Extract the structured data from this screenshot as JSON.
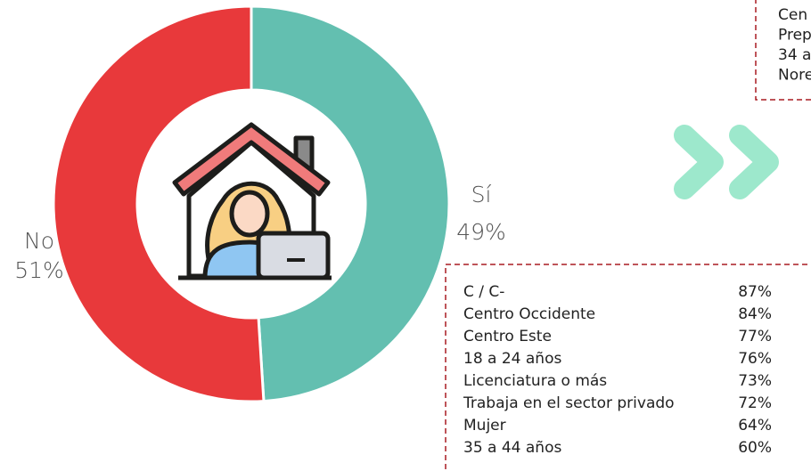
{
  "chart_data": {
    "type": "donut",
    "categories": [
      "Sí",
      "No"
    ],
    "values": [
      49,
      51
    ],
    "value_labels": [
      "49%",
      "51%"
    ],
    "colors": [
      "#63bfb0",
      "#e8393b"
    ]
  },
  "top_box": {
    "lines": [
      "Cen",
      "Prep",
      "34 a",
      "Nore"
    ]
  },
  "bottom_box": {
    "rows": [
      [
        "C / C-",
        "87%"
      ],
      [
        "Centro Occidente",
        "84%"
      ],
      [
        "Centro Este",
        "77%"
      ],
      [
        "18 a 24 años",
        "76%"
      ],
      [
        "Licenciatura o más",
        "73%"
      ],
      [
        "Trabaja en el sector privado",
        "72%"
      ],
      [
        "Mujer",
        "64%"
      ],
      [
        "35 a 44 años",
        "60%"
      ]
    ]
  }
}
